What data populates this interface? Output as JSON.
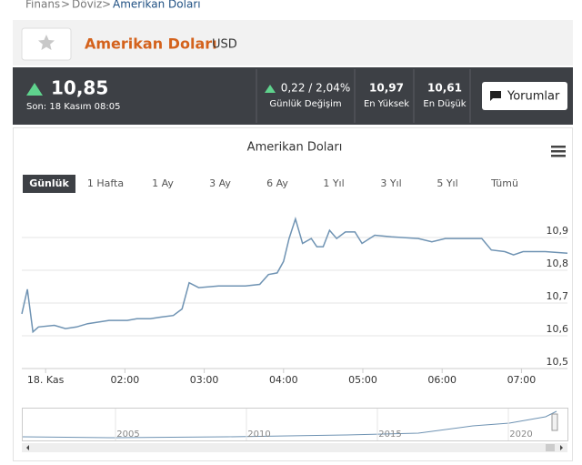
{
  "breadcrumb": {
    "items": [
      "Finans",
      "Döviz",
      "Amerikan Doları"
    ],
    "separator": ">"
  },
  "header": {
    "title": "Amerikan Doları",
    "code": "USD"
  },
  "quote": {
    "price": "10,85",
    "time": "Son: 18 Kasım 08:05",
    "change": "0,22 / 2,04%",
    "change_label": "Günlük Değişim",
    "high": "10,97",
    "high_label": "En Yüksek",
    "low": "10,61",
    "low_label": "En Düşük",
    "comments_button": "Yorumlar"
  },
  "chart_data": {
    "type": "line",
    "title": "Amerikan Doları",
    "ranges": [
      "Günlük",
      "1 Hafta",
      "1 Ay",
      "3 Ay",
      "6 Ay",
      "1 Yıl",
      "3 Yıl",
      "5 Yıl",
      "Tümü"
    ],
    "selected_range": 0,
    "x": [
      0.7,
      0.77,
      0.84,
      0.91,
      1.11,
      1.25,
      1.39,
      1.53,
      1.8,
      2.03,
      2.15,
      2.32,
      2.45,
      2.61,
      2.72,
      2.81,
      2.93,
      3.18,
      3.52,
      3.7,
      3.81,
      3.92,
      4.0,
      4.07,
      4.15,
      4.24,
      4.35,
      4.42,
      4.5,
      4.58,
      4.67,
      4.78,
      4.9,
      4.99,
      5.15,
      5.36,
      5.7,
      5.87,
      6.04,
      6.5,
      6.62,
      6.79,
      6.9,
      7.02,
      7.3,
      7.58
    ],
    "values": [
      10.667,
      10.742,
      10.612,
      10.627,
      10.632,
      10.622,
      10.627,
      10.637,
      10.647,
      10.647,
      10.652,
      10.652,
      10.657,
      10.662,
      10.682,
      10.762,
      10.747,
      10.752,
      10.752,
      10.757,
      10.787,
      10.792,
      10.827,
      10.897,
      10.957,
      10.882,
      10.897,
      10.872,
      10.872,
      10.922,
      10.897,
      10.917,
      10.917,
      10.882,
      10.907,
      10.902,
      10.897,
      10.887,
      10.897,
      10.897,
      10.862,
      10.857,
      10.847,
      10.857,
      10.857,
      10.852
    ],
    "color": "#6f93b3",
    "xlim": [
      0.7,
      7.58
    ],
    "xticks": [
      {
        "value": 1,
        "label": "18. Kas"
      },
      {
        "value": 2,
        "label": "02:00"
      },
      {
        "value": 3,
        "label": "03:00"
      },
      {
        "value": 4,
        "label": "04:00"
      },
      {
        "value": 5,
        "label": "05:00"
      },
      {
        "value": 6,
        "label": "06:00"
      },
      {
        "value": 7,
        "label": "07:00"
      }
    ],
    "ylim": [
      10.5,
      11.0
    ],
    "yticks": [
      {
        "value": 10.5,
        "label": "10,5"
      },
      {
        "value": 10.6,
        "label": "10,6"
      },
      {
        "value": 10.7,
        "label": "10,7"
      },
      {
        "value": 10.8,
        "label": "10,8"
      },
      {
        "value": 10.9,
        "label": "10,9"
      }
    ],
    "grid": true
  },
  "navigator": {
    "years": [
      "2005",
      "2010",
      "2015",
      "2020"
    ]
  }
}
